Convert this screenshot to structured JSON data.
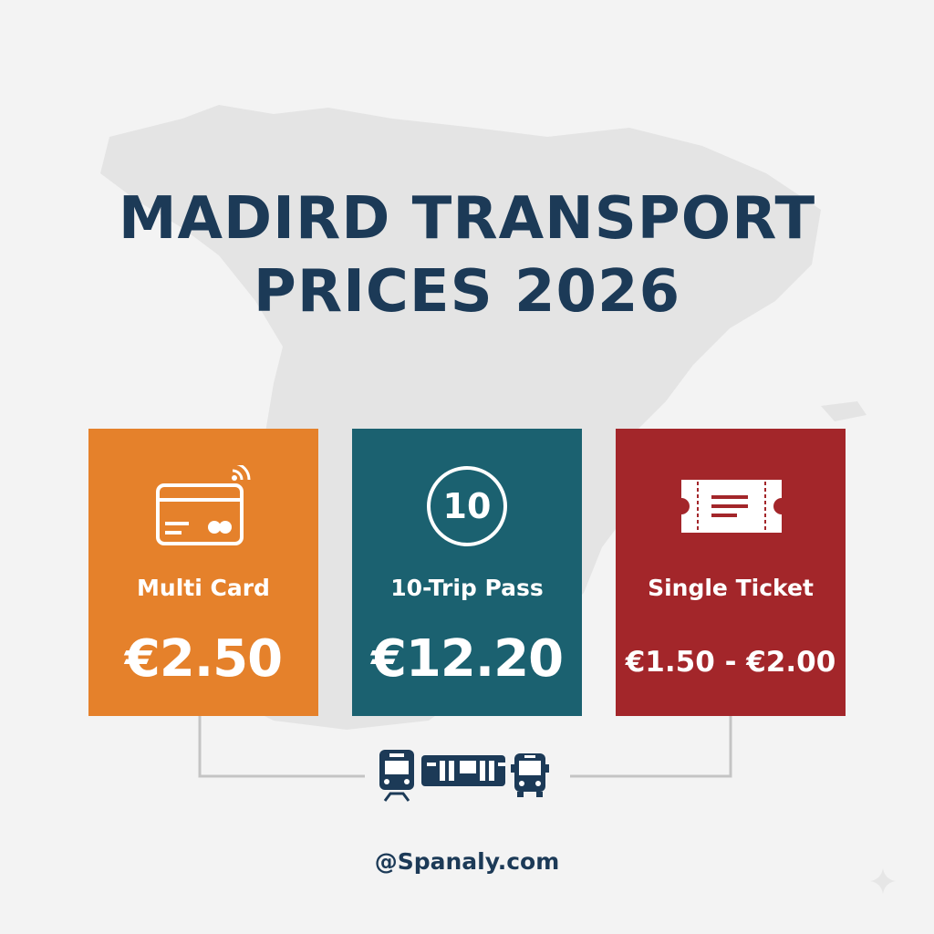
{
  "title": {
    "line1": "MADIRD TRANSPORT",
    "line2": "PRICES 2026"
  },
  "cards": [
    {
      "label": "Multi Card",
      "price": "€2.50",
      "icon": "contactless-card-icon",
      "color": "#e5812b"
    },
    {
      "label": "10-Trip Pass",
      "price": "€12.20",
      "icon": "ten-circle-icon",
      "icon_text": "10",
      "color": "#1b6170"
    },
    {
      "label": "Single Ticket",
      "price": "€1.50 - €2.00",
      "icon": "ticket-icon",
      "color": "#a3262a"
    }
  ],
  "vehicle_icons": [
    "metro-train-icon",
    "tram-icon",
    "bus-icon"
  ],
  "footer": "@Spanaly.com",
  "colors": {
    "title": "#1c3a57",
    "background": "#f3f3f3"
  }
}
